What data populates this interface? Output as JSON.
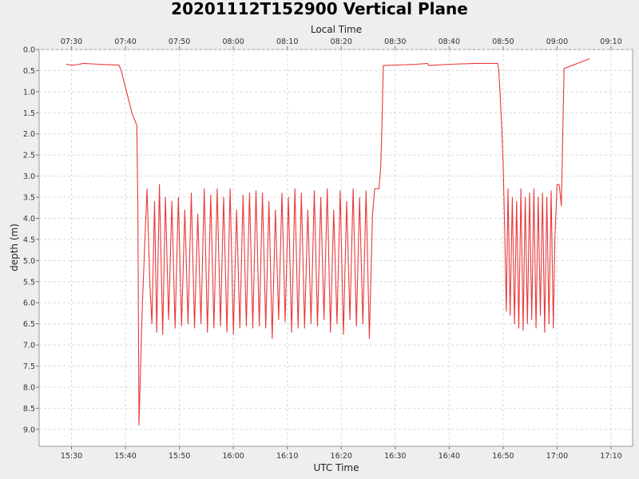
{
  "chart_data": {
    "type": "line",
    "title": "20201112T152900 Vertical Plane",
    "xlabel": "UTC Time",
    "x2label": "Local Time",
    "ylabel": "depth (m)",
    "y_inverted": true,
    "ylim": [
      0.0,
      9.4
    ],
    "yticks": [
      "0.0",
      "0.5",
      "1.0",
      "1.5",
      "2.0",
      "2.5",
      "3.0",
      "3.5",
      "4.0",
      "4.5",
      "5.0",
      "5.5",
      "6.0",
      "6.5",
      "7.0",
      "7.5",
      "8.0",
      "8.5",
      "9.0"
    ],
    "x_range_minutes": [
      -6.0,
      104.0
    ],
    "xticks": [
      {
        "m": 0,
        "label": "15:30"
      },
      {
        "m": 10,
        "label": "15:40"
      },
      {
        "m": 20,
        "label": "15:50"
      },
      {
        "m": 30,
        "label": "16:00"
      },
      {
        "m": 40,
        "label": "16:10"
      },
      {
        "m": 50,
        "label": "16:20"
      },
      {
        "m": 60,
        "label": "16:30"
      },
      {
        "m": 70,
        "label": "16:40"
      },
      {
        "m": 80,
        "label": "16:50"
      },
      {
        "m": 90,
        "label": "17:00"
      },
      {
        "m": 100,
        "label": "17:10"
      }
    ],
    "x2ticks": [
      {
        "m": 0,
        "label": "07:30"
      },
      {
        "m": 10,
        "label": "07:40"
      },
      {
        "m": 20,
        "label": "07:50"
      },
      {
        "m": 30,
        "label": "08:00"
      },
      {
        "m": 40,
        "label": "08:10"
      },
      {
        "m": 50,
        "label": "08:20"
      },
      {
        "m": 60,
        "label": "08:30"
      },
      {
        "m": 70,
        "label": "08:40"
      },
      {
        "m": 80,
        "label": "08:50"
      },
      {
        "m": 90,
        "label": "09:00"
      },
      {
        "m": 100,
        "label": "09:10"
      }
    ],
    "grid": true,
    "series": [
      {
        "color": "#e8393a",
        "segments": [
          [
            [
              -1.0,
              0.35
            ],
            [
              0.0,
              0.37
            ],
            [
              1.0,
              0.36
            ],
            [
              2.2,
              0.33
            ],
            [
              5.0,
              0.35
            ],
            [
              8.8,
              0.37
            ],
            [
              9.2,
              0.5
            ],
            [
              10.2,
              1.0
            ],
            [
              11.2,
              1.5
            ],
            [
              12.1,
              1.8
            ],
            [
              12.3,
              3.8
            ],
            [
              12.5,
              8.9
            ],
            [
              12.8,
              7.5
            ],
            [
              13.1,
              6.2
            ],
            [
              13.6,
              4.5
            ],
            [
              14.0,
              3.3
            ],
            [
              14.5,
              5.5
            ],
            [
              14.9,
              6.5
            ],
            [
              15.4,
              3.6
            ],
            [
              15.8,
              6.7
            ],
            [
              16.3,
              3.2
            ],
            [
              16.9,
              6.75
            ],
            [
              17.4,
              3.5
            ],
            [
              18.0,
              6.4
            ],
            [
              18.6,
              3.6
            ],
            [
              19.2,
              6.6
            ],
            [
              19.8,
              3.5
            ],
            [
              20.4,
              6.55
            ],
            [
              21.0,
              3.8
            ],
            [
              21.6,
              6.5
            ],
            [
              22.2,
              3.4
            ],
            [
              22.8,
              6.6
            ],
            [
              23.4,
              3.9
            ],
            [
              24.0,
              6.5
            ],
            [
              24.6,
              3.3
            ],
            [
              25.2,
              6.7
            ],
            [
              25.8,
              3.45
            ],
            [
              26.4,
              6.6
            ],
            [
              27.0,
              3.3
            ],
            [
              27.6,
              6.55
            ],
            [
              28.2,
              3.5
            ],
            [
              28.8,
              6.7
            ],
            [
              29.4,
              3.3
            ],
            [
              30.0,
              6.75
            ],
            [
              30.6,
              3.8
            ],
            [
              31.2,
              6.6
            ],
            [
              31.8,
              3.45
            ],
            [
              32.4,
              6.55
            ],
            [
              33.0,
              3.4
            ],
            [
              33.6,
              6.6
            ],
            [
              34.2,
              3.35
            ],
            [
              34.8,
              6.55
            ],
            [
              35.4,
              3.4
            ],
            [
              36.0,
              6.6
            ],
            [
              36.6,
              3.6
            ],
            [
              37.2,
              6.85
            ],
            [
              37.8,
              3.8
            ],
            [
              38.4,
              6.4
            ],
            [
              39.0,
              3.4
            ],
            [
              39.6,
              6.45
            ],
            [
              40.2,
              3.5
            ],
            [
              40.8,
              6.7
            ],
            [
              41.4,
              3.3
            ],
            [
              42.0,
              6.6
            ],
            [
              42.6,
              3.4
            ],
            [
              43.2,
              6.6
            ],
            [
              43.8,
              3.8
            ],
            [
              44.4,
              6.5
            ],
            [
              45.0,
              3.35
            ],
            [
              45.6,
              6.55
            ],
            [
              46.2,
              3.5
            ],
            [
              46.8,
              6.4
            ],
            [
              47.4,
              3.3
            ],
            [
              48.0,
              6.7
            ],
            [
              48.6,
              3.8
            ],
            [
              49.2,
              6.5
            ],
            [
              49.8,
              3.35
            ],
            [
              50.4,
              6.75
            ],
            [
              51.0,
              3.6
            ],
            [
              51.6,
              6.4
            ],
            [
              52.2,
              3.3
            ],
            [
              52.8,
              6.55
            ],
            [
              53.4,
              3.5
            ],
            [
              54.0,
              6.5
            ],
            [
              54.6,
              3.35
            ],
            [
              55.2,
              6.85
            ],
            [
              55.8,
              3.9
            ],
            [
              56.2,
              3.3
            ],
            [
              57.0,
              3.3
            ],
            [
              57.3,
              2.8
            ],
            [
              57.5,
              2.0
            ],
            [
              57.8,
              0.38
            ],
            [
              64.0,
              0.35
            ],
            [
              66.0,
              0.33
            ],
            [
              66.2,
              0.38
            ],
            [
              70.0,
              0.35
            ],
            [
              75.0,
              0.33
            ],
            [
              79.0,
              0.33
            ],
            [
              79.2,
              0.5
            ],
            [
              79.5,
              1.2
            ],
            [
              79.8,
              2.0
            ],
            [
              80.0,
              2.7
            ],
            [
              80.3,
              4.3
            ],
            [
              80.6,
              6.2
            ],
            [
              80.9,
              3.3
            ],
            [
              81.3,
              6.3
            ],
            [
              81.7,
              3.5
            ],
            [
              82.1,
              6.5
            ],
            [
              82.5,
              3.6
            ],
            [
              82.9,
              6.6
            ],
            [
              83.3,
              3.3
            ],
            [
              83.7,
              6.65
            ],
            [
              84.1,
              3.5
            ],
            [
              84.5,
              6.5
            ],
            [
              84.9,
              3.4
            ],
            [
              85.3,
              6.4
            ],
            [
              85.7,
              3.3
            ],
            [
              86.1,
              6.6
            ],
            [
              86.5,
              3.5
            ],
            [
              86.9,
              6.3
            ],
            [
              87.3,
              3.4
            ],
            [
              87.7,
              6.7
            ],
            [
              88.1,
              3.5
            ],
            [
              88.5,
              6.5
            ],
            [
              88.9,
              3.35
            ],
            [
              89.3,
              6.6
            ],
            [
              89.6,
              4.5
            ],
            [
              90.0,
              3.2
            ],
            [
              90.4,
              3.2
            ],
            [
              90.8,
              3.7
            ],
            [
              91.3,
              0.45
            ],
            [
              96.0,
              0.22
            ]
          ]
        ]
      }
    ]
  }
}
